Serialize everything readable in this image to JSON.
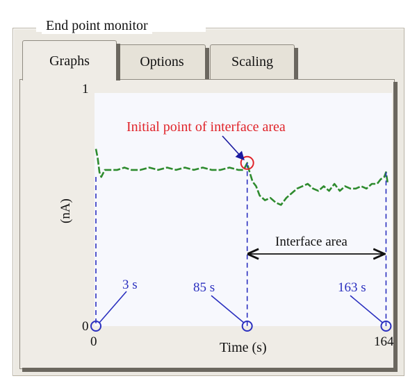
{
  "window": {
    "group_title": "End point monitor"
  },
  "tabs": [
    {
      "label": "Graphs",
      "active": true
    },
    {
      "label": "Options",
      "active": false
    },
    {
      "label": "Scaling",
      "active": false
    }
  ],
  "chart_data": {
    "type": "line",
    "xlabel": "Time (s)",
    "ylabel": "(nA)",
    "x_ticks": [
      "0",
      "164"
    ],
    "y_ticks": [
      "0",
      "1"
    ],
    "xlim": [
      0,
      164
    ],
    "ylim": [
      0,
      1
    ],
    "series": [
      {
        "color": "#2e8b2e",
        "x": [
          0,
          1,
          2,
          3,
          5,
          8,
          12,
          16,
          20,
          25,
          30,
          35,
          40,
          45,
          50,
          55,
          60,
          65,
          70,
          75,
          80,
          83,
          85,
          86,
          88,
          90,
          92,
          95,
          98,
          101,
          104,
          107,
          110,
          113,
          116,
          119,
          122,
          125,
          128,
          131,
          134,
          137,
          140,
          143,
          146,
          149,
          152,
          155,
          158,
          160,
          162,
          163,
          164
        ],
        "y": [
          0.76,
          0.72,
          0.66,
          0.64,
          0.67,
          0.67,
          0.67,
          0.68,
          0.67,
          0.67,
          0.68,
          0.67,
          0.68,
          0.67,
          0.68,
          0.67,
          0.68,
          0.67,
          0.67,
          0.68,
          0.67,
          0.67,
          0.7,
          0.67,
          0.62,
          0.6,
          0.56,
          0.54,
          0.55,
          0.53,
          0.52,
          0.55,
          0.57,
          0.59,
          0.6,
          0.61,
          0.59,
          0.58,
          0.6,
          0.58,
          0.61,
          0.58,
          0.6,
          0.59,
          0.59,
          0.6,
          0.59,
          0.61,
          0.61,
          0.63,
          0.64,
          0.66,
          0.61
        ]
      }
    ]
  },
  "annotations": {
    "initial_point_label": "Initial point of interface area",
    "interface_area_label": "Interface area",
    "marker_3s": "3 s",
    "marker_85s": "85 s",
    "marker_163s": "163 s"
  },
  "colors": {
    "annotation_red": "#e0242a",
    "marker_blue": "#2a2fbf",
    "series_green": "#2e8b2e"
  }
}
